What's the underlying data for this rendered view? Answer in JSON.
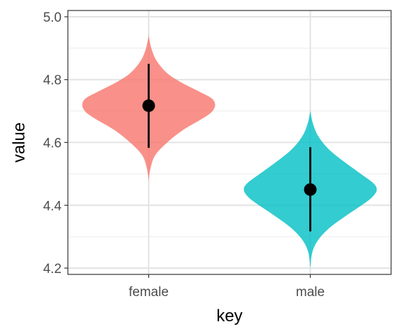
{
  "chart_data": {
    "type": "violin",
    "xlabel": "key",
    "ylabel": "value",
    "categories": [
      "female",
      "male"
    ],
    "ylim": [
      4.18,
      5.02
    ],
    "yticks": [
      4.2,
      4.4,
      4.6,
      4.8,
      5.0
    ],
    "ytick_labels": [
      "4.2",
      "4.4",
      "4.6",
      "4.8",
      "5.0"
    ],
    "grid": true,
    "series": [
      {
        "category": "female",
        "color": "#F8766D",
        "mean": 4.717,
        "lower": 4.583,
        "upper": 4.85,
        "min": 4.48,
        "max": 4.94,
        "density": [
          [
            4.48,
            0.0
          ],
          [
            4.52,
            0.03
          ],
          [
            4.56,
            0.1
          ],
          [
            4.6,
            0.28
          ],
          [
            4.64,
            0.52
          ],
          [
            4.68,
            0.84
          ],
          [
            4.7,
            0.96
          ],
          [
            4.72,
            1.0
          ],
          [
            4.74,
            0.95
          ],
          [
            4.76,
            0.78
          ],
          [
            4.79,
            0.5
          ],
          [
            4.82,
            0.28
          ],
          [
            4.86,
            0.12
          ],
          [
            4.9,
            0.04
          ],
          [
            4.94,
            0.0
          ]
        ]
      },
      {
        "category": "male",
        "color": "#00BFC4",
        "mean": 4.45,
        "lower": 4.317,
        "upper": 4.585,
        "min": 4.2,
        "max": 4.7,
        "density": [
          [
            4.2,
            0.0
          ],
          [
            4.25,
            0.03
          ],
          [
            4.29,
            0.12
          ],
          [
            4.33,
            0.3
          ],
          [
            4.37,
            0.56
          ],
          [
            4.41,
            0.84
          ],
          [
            4.43,
            0.95
          ],
          [
            4.45,
            1.0
          ],
          [
            4.47,
            0.95
          ],
          [
            4.5,
            0.76
          ],
          [
            4.54,
            0.5
          ],
          [
            4.58,
            0.27
          ],
          [
            4.62,
            0.12
          ],
          [
            4.66,
            0.04
          ],
          [
            4.7,
            0.0
          ]
        ]
      }
    ]
  }
}
